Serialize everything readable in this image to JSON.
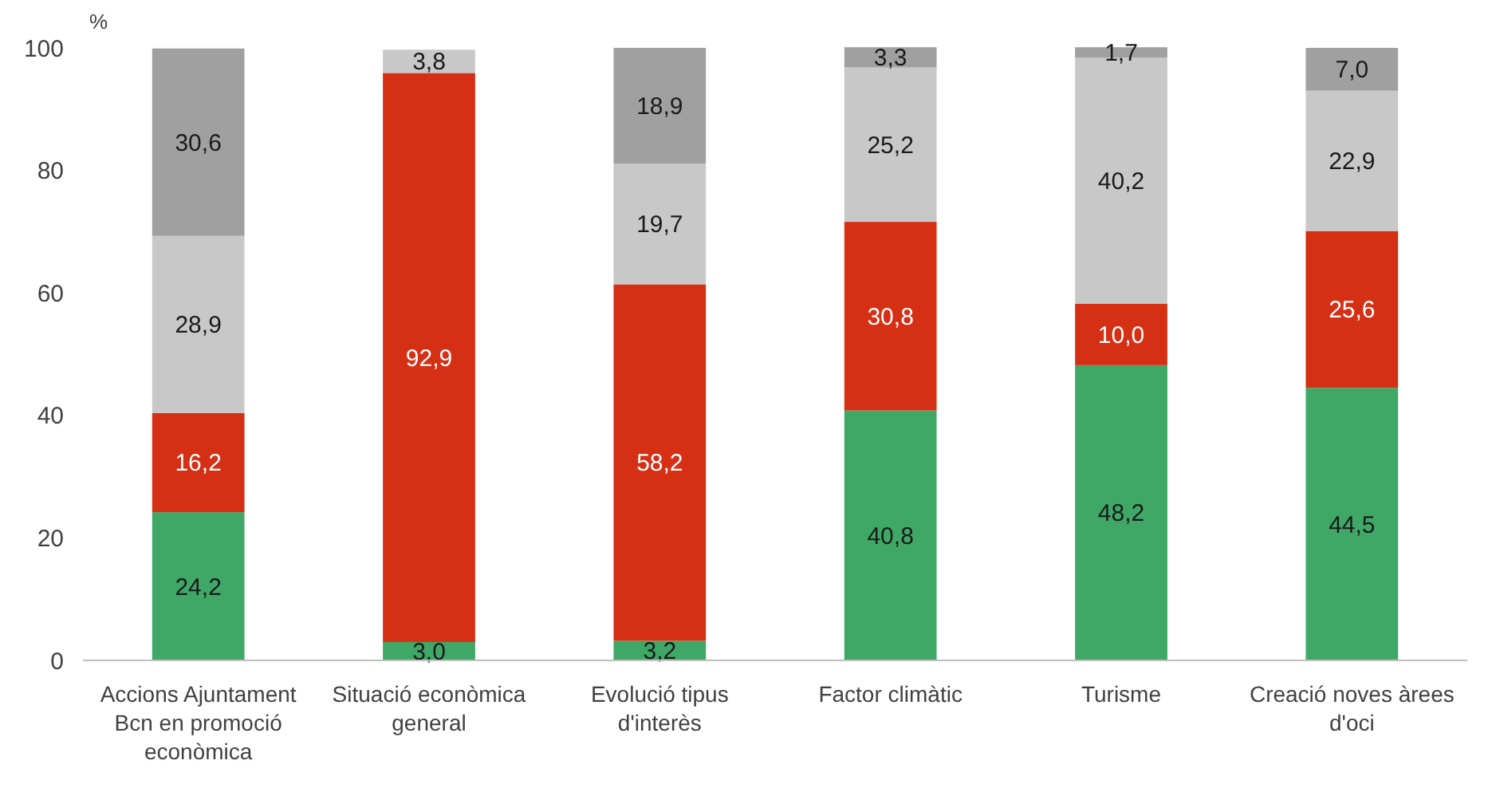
{
  "chart_data": {
    "type": "bar",
    "stacked": true,
    "ylabel": "%",
    "categories": [
      "Accions Ajuntament Bcn en promoció econòmica",
      "Situació econòmica general",
      "Evolució tipus d'interès",
      "Factor climàtic",
      "Turisme",
      "Creació noves àrees d'oci"
    ],
    "series": [
      {
        "color": "#3fa866",
        "values": [
          24.2,
          3.0,
          3.2,
          40.8,
          48.2,
          44.5
        ],
        "value_labels": [
          "24,2",
          "3,0",
          "3,2",
          "40,8",
          "48,2",
          "44,5"
        ]
      },
      {
        "color": "#d52f14",
        "values": [
          16.2,
          92.9,
          58.2,
          30.8,
          10.0,
          25.6
        ],
        "value_labels": [
          "16,2",
          "92,9",
          "58,2",
          "30,8",
          "10,0",
          "25,6"
        ]
      },
      {
        "color": "#c8c8c8",
        "values": [
          28.9,
          3.8,
          19.7,
          25.2,
          40.2,
          22.9
        ],
        "value_labels": [
          "28,9",
          "3,8",
          "19,7",
          "25,2",
          "40,2",
          "22,9"
        ]
      },
      {
        "color": "#a0a0a0",
        "values": [
          30.6,
          null,
          18.9,
          3.3,
          1.7,
          7.0
        ],
        "value_labels": [
          "30,6",
          null,
          "18,9",
          "3,3",
          "1,7",
          "7,0"
        ]
      }
    ],
    "ylim": [
      0,
      100
    ],
    "yticks": [
      0,
      20,
      40,
      60,
      80,
      100
    ],
    "grid": false
  }
}
